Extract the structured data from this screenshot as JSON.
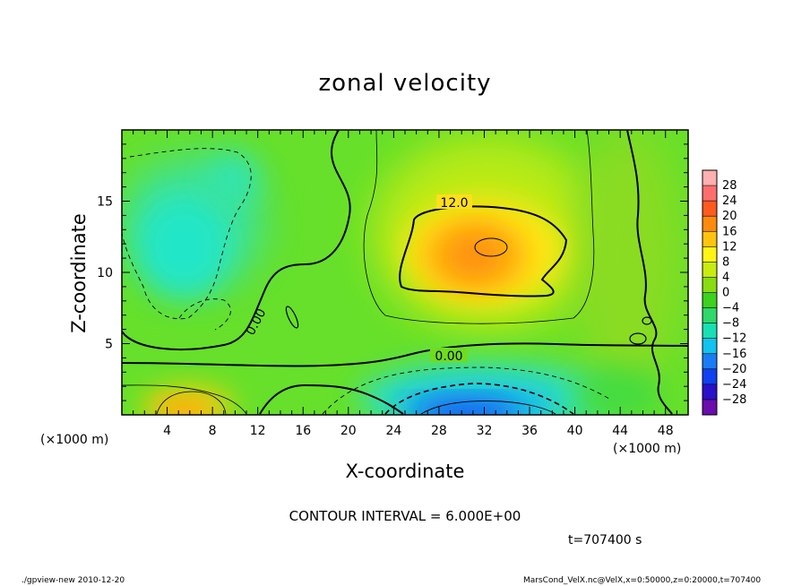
{
  "chart_data": {
    "type": "heatmap",
    "title": "zonal velocity",
    "xlabel": "X-coordinate",
    "ylabel": "Z-coordinate",
    "x_unit_label": "(×1000 m)",
    "xlim": [
      0,
      50
    ],
    "ylim": [
      0,
      20
    ],
    "x_ticks": [
      4,
      8,
      12,
      16,
      20,
      24,
      28,
      32,
      36,
      40,
      44,
      48
    ],
    "y_ticks": [
      5,
      10,
      15
    ],
    "colorbar": {
      "levels": [
        -28,
        -24,
        -20,
        -16,
        -12,
        -8,
        -4,
        0,
        4,
        8,
        12,
        16,
        20,
        24,
        28
      ],
      "labels": [
        "28",
        "24",
        "20",
        "16",
        "12",
        "8",
        "4",
        "0",
        "−4",
        "−8",
        "−12",
        "−16",
        "−20",
        "−24",
        "−28"
      ],
      "colors": [
        "#6a0dad",
        "#2a10c8",
        "#1040f0",
        "#1a7cf5",
        "#12c2ef",
        "#18e0b4",
        "#2ed86a",
        "#3cd21e",
        "#88dc10",
        "#c8ec10",
        "#fff514",
        "#ffc410",
        "#ff8a0c",
        "#ff5a20",
        "#ff6e6e",
        "#ffb0b0"
      ]
    },
    "contour_labels": [
      "12.0",
      "0.00",
      "0.00"
    ],
    "contour_interval": "CONTOUR INTERVAL = 6.000E+00",
    "time": "t=707400 s",
    "features": [
      {
        "name": "positive core",
        "x": 32,
        "z": 12,
        "value": 16
      },
      {
        "name": "negative jet",
        "x": 30,
        "z": 0.5,
        "value": -20
      },
      {
        "name": "surface positive",
        "x": 6,
        "z": 1,
        "value": 14
      },
      {
        "name": "upper-left negative",
        "x": 6,
        "z": 11,
        "value": -10
      }
    ]
  },
  "footer": {
    "left": "./gpview-new   2010-12-20",
    "right": "MarsCond_VelX.nc@VelX,x=0:50000,z=0:20000,t=707400"
  }
}
